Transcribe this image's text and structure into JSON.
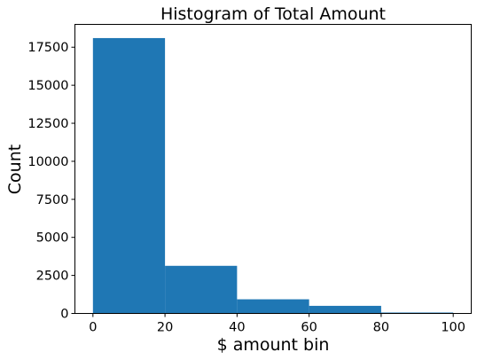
{
  "chart_data": {
    "type": "bar",
    "title": "Histogram of Total Amount",
    "xlabel": "$ amount bin",
    "ylabel": "Count",
    "bins": [
      {
        "start": 0,
        "end": 20,
        "count": 18100
      },
      {
        "start": 20,
        "end": 40,
        "count": 3130
      },
      {
        "start": 40,
        "end": 60,
        "count": 930
      },
      {
        "start": 60,
        "end": 80,
        "count": 500
      },
      {
        "start": 80,
        "end": 100,
        "count": 60
      }
    ],
    "xlim": [
      -5,
      105
    ],
    "ylim": [
      0,
      19000
    ],
    "xticks": [
      0,
      20,
      40,
      60,
      80,
      100
    ],
    "yticks": [
      0,
      2500,
      5000,
      7500,
      10000,
      12500,
      15000,
      17500
    ],
    "bar_color": "#1f77b4",
    "grid": false,
    "legend": "none"
  }
}
